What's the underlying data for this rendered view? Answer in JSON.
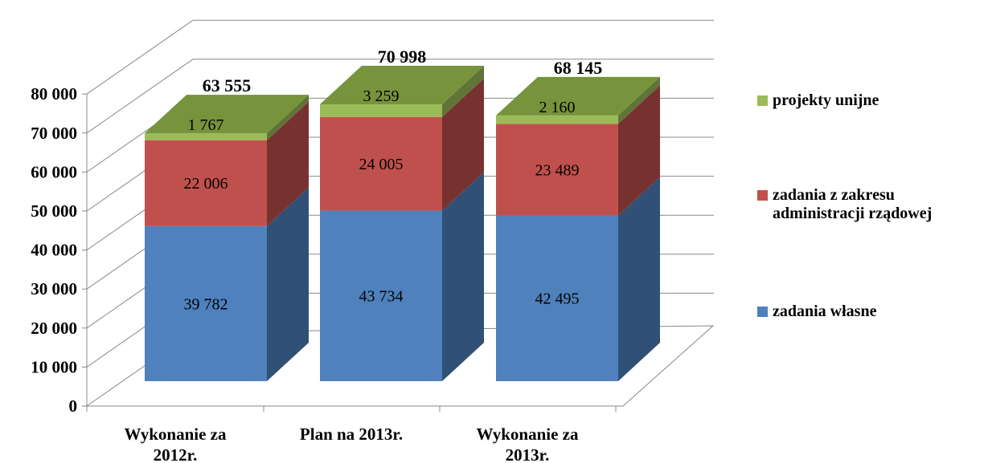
{
  "chart_data": {
    "type": "bar",
    "stacked": true,
    "three_d": true,
    "categories": [
      "Wykonanie za 2012r.",
      "Plan na 2013r.",
      "Wykonanie za 2013r."
    ],
    "series": [
      {
        "name": "zadania własne",
        "values": [
          39782,
          43734,
          42495
        ],
        "labels": [
          "39 782",
          "43 734",
          "42 495"
        ],
        "color": "#4f81bd"
      },
      {
        "name": "zadania z zakresu administracji rządowej",
        "values": [
          22006,
          24005,
          23489
        ],
        "labels": [
          "22 006",
          "24 005",
          "23 489"
        ],
        "color": "#c0504d"
      },
      {
        "name": "projekty unijne",
        "values": [
          1767,
          3259,
          2160
        ],
        "labels": [
          "1 767",
          "3 259",
          "2 160"
        ],
        "color": "#9bbb59"
      }
    ],
    "totals": {
      "values": [
        63555,
        70998,
        68145
      ],
      "labels": [
        "63 555",
        "70 998",
        "68 145"
      ],
      "color": "#77933c"
    },
    "ylim": [
      0,
      80000
    ],
    "yticks": [
      0,
      10000,
      20000,
      30000,
      40000,
      50000,
      60000,
      70000,
      80000
    ],
    "ytick_labels": [
      "0",
      "10 000",
      "20 000",
      "30 000",
      "40 000",
      "50 000",
      "60 000",
      "70 000",
      "80 000"
    ],
    "title": "",
    "xlabel": "",
    "ylabel": "",
    "grid": true,
    "legend_position": "right"
  },
  "legend": {
    "items": [
      {
        "label": "projekty unijne",
        "color": "#9bbb59"
      },
      {
        "label": "zadania z zakresu\nadministracji rządowej",
        "color": "#c0504d"
      },
      {
        "label": "zadania własne",
        "color": "#4f81bd"
      }
    ]
  }
}
